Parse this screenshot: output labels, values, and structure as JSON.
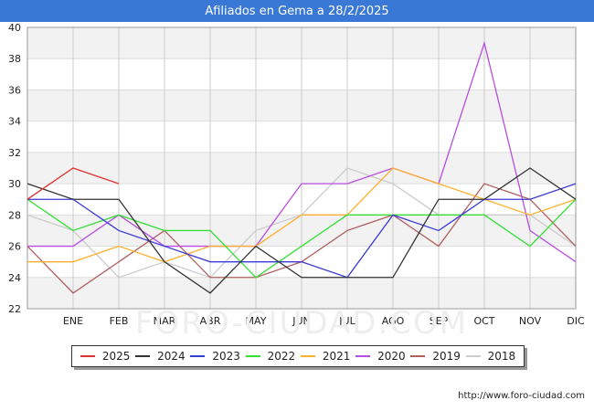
{
  "chart_data": {
    "type": "line",
    "title": "Afiliados en Gema a 28/2/2025",
    "categories": [
      "",
      "ENE",
      "FEB",
      "MAR",
      "ABR",
      "MAY",
      "JUN",
      "JUL",
      "AGO",
      "SEP",
      "OCT",
      "NOV",
      "DIC"
    ],
    "ylim": [
      22,
      40
    ],
    "yticks": [
      22,
      24,
      26,
      28,
      30,
      32,
      34,
      36,
      38,
      40
    ],
    "grid": true,
    "legend_position": "bottom",
    "series": [
      {
        "name": "2025",
        "color": "#e03030",
        "values": [
          29,
          31,
          30,
          null,
          null,
          null,
          null,
          null,
          null,
          null,
          null,
          null,
          null
        ]
      },
      {
        "name": "2024",
        "color": "#333333",
        "values": [
          30,
          29,
          29,
          25,
          23,
          26,
          24,
          24,
          24,
          29,
          29,
          31,
          29
        ]
      },
      {
        "name": "2023",
        "color": "#3a3ad6",
        "values": [
          29,
          29,
          27,
          26,
          25,
          25,
          25,
          24,
          28,
          27,
          29,
          29,
          30
        ]
      },
      {
        "name": "2022",
        "color": "#33e033",
        "values": [
          29,
          27,
          28,
          27,
          27,
          24,
          26,
          28,
          28,
          28,
          28,
          26,
          29
        ]
      },
      {
        "name": "2021",
        "color": "#ffb030",
        "values": [
          25,
          25,
          26,
          25,
          26,
          26,
          28,
          28,
          31,
          30,
          29,
          28,
          29
        ]
      },
      {
        "name": "2020",
        "color": "#b84ee0",
        "values": [
          26,
          26,
          28,
          26,
          26,
          26,
          30,
          30,
          31,
          30,
          39,
          27,
          25
        ]
      },
      {
        "name": "2019",
        "color": "#b06060",
        "values": [
          26,
          23,
          25,
          27,
          24,
          24,
          25,
          27,
          28,
          26,
          30,
          29,
          26
        ]
      },
      {
        "name": "2018",
        "color": "#cccccc",
        "values": [
          28,
          27,
          24,
          25,
          24,
          27,
          28,
          31,
          30,
          28,
          28,
          28,
          26
        ]
      }
    ]
  },
  "watermark": "FORO-CIUDAD.COM",
  "source_text": "http://www.foro-ciudad.com"
}
